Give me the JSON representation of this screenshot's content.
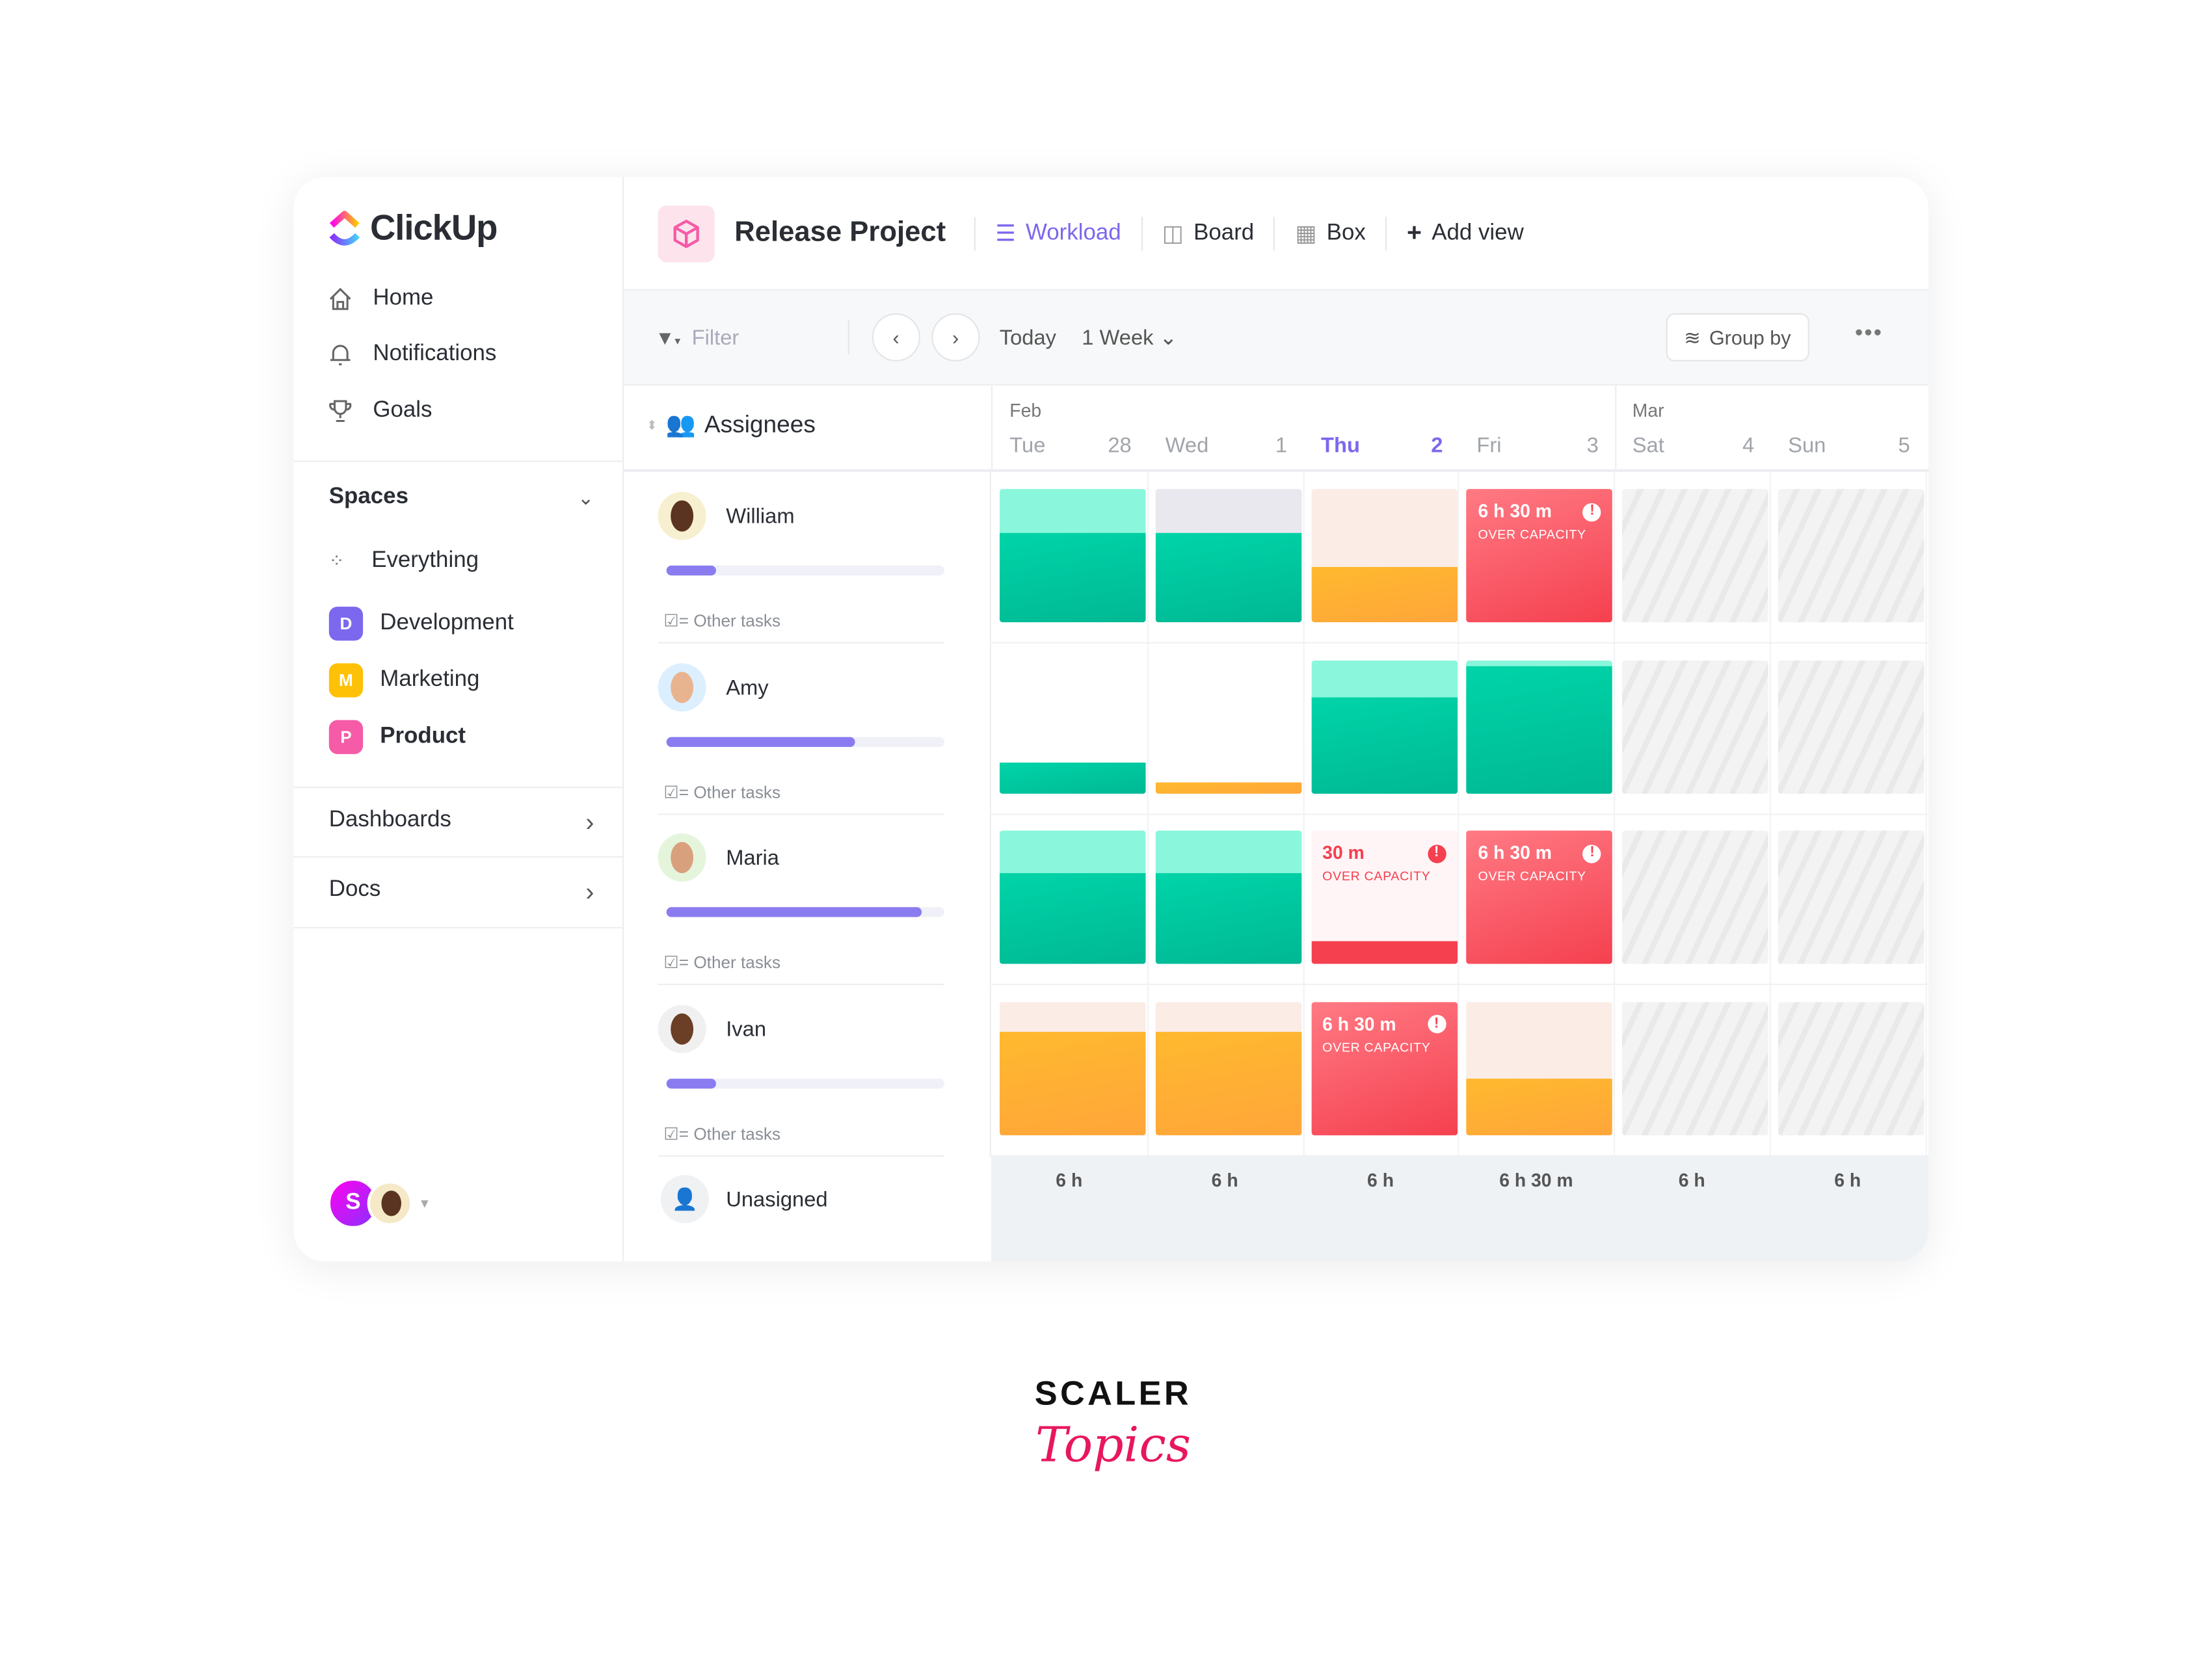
{
  "app": {
    "name": "ClickUp"
  },
  "sidebar": {
    "nav": [
      {
        "label": "Home",
        "icon": "home-icon"
      },
      {
        "label": "Notifications",
        "icon": "bell-icon"
      },
      {
        "label": "Goals",
        "icon": "trophy-icon"
      }
    ],
    "spaces_label": "Spaces",
    "everything_label": "Everything",
    "spaces": [
      {
        "letter": "D",
        "label": "Development",
        "color": "#7b68ee"
      },
      {
        "letter": "M",
        "label": "Marketing",
        "color": "#ffc107"
      },
      {
        "letter": "P",
        "label": "Product",
        "color": "#f55ba7",
        "bold": true
      }
    ],
    "dashboards_label": "Dashboards",
    "docs_label": "Docs",
    "user_initial": "S"
  },
  "header": {
    "project": "Release Project",
    "views": [
      {
        "label": "Workload",
        "active": true
      },
      {
        "label": "Board"
      },
      {
        "label": "Box"
      }
    ],
    "add_view": "Add view"
  },
  "toolbar": {
    "filter_placeholder": "Filter",
    "today": "Today",
    "range": "1 Week",
    "group_by": "Group by",
    "more": "•••"
  },
  "grid": {
    "assignees_label": "Assignees",
    "months": [
      {
        "label": "Feb",
        "col": 0
      },
      {
        "label": "Mar",
        "col": 4
      }
    ],
    "days": [
      {
        "name": "Tue",
        "num": "28"
      },
      {
        "name": "Wed",
        "num": "1"
      },
      {
        "name": "Thu",
        "num": "2",
        "today": true
      },
      {
        "name": "Fri",
        "num": "3"
      },
      {
        "name": "Sat",
        "num": "4"
      },
      {
        "name": "Sun",
        "num": "5"
      }
    ],
    "other_tasks": "Other tasks",
    "colors": {
      "green": "#00c9a0",
      "mint": "#8af7dc",
      "orange": "#ffb213",
      "peach": "#fbece6",
      "gray": "#e8e8ee",
      "red": "#f5404f"
    },
    "people": [
      {
        "name": "William",
        "progress": 0.18,
        "cells": [
          {
            "t": "bar",
            "fill": 0.67,
            "color": "green",
            "bg": "mint"
          },
          {
            "t": "bar",
            "fill": 0.67,
            "color": "green",
            "bg": "gray"
          },
          {
            "t": "bar",
            "fill": 0.41,
            "color": "orange",
            "bg": "peach"
          },
          {
            "t": "over",
            "time": "6 h 30 m",
            "label": "OVER CAPACITY"
          },
          {
            "t": "off"
          },
          {
            "t": "off"
          }
        ]
      },
      {
        "name": "Amy",
        "progress": 0.68,
        "cells": [
          {
            "t": "bar",
            "fill": 0.23,
            "color": "green"
          },
          {
            "t": "bar",
            "fill": 0.08,
            "color": "orange"
          },
          {
            "t": "bar",
            "fill": 0.72,
            "color": "green",
            "bg": "mint"
          },
          {
            "t": "bar",
            "fill": 0.95,
            "color": "green",
            "bg": "mint"
          },
          {
            "t": "off"
          },
          {
            "t": "off"
          }
        ]
      },
      {
        "name": "Maria",
        "progress": 0.92,
        "cells": [
          {
            "t": "bar",
            "fill": 0.68,
            "color": "green",
            "bg": "mint"
          },
          {
            "t": "bar",
            "fill": 0.68,
            "color": "green",
            "bg": "mint"
          },
          {
            "t": "over-small",
            "time": "30 m",
            "label": "OVER CAPACITY",
            "fill": 0.17
          },
          {
            "t": "over",
            "time": "6 h 30 m",
            "label": "OVER CAPACITY"
          },
          {
            "t": "off"
          },
          {
            "t": "off"
          }
        ]
      },
      {
        "name": "Ivan",
        "progress": 0.18,
        "cells": [
          {
            "t": "bar",
            "fill": 0.77,
            "color": "orange",
            "bg": "peach"
          },
          {
            "t": "bar",
            "fill": 0.77,
            "color": "orange",
            "bg": "peach"
          },
          {
            "t": "over",
            "time": "6 h 30 m",
            "label": "OVER CAPACITY"
          },
          {
            "t": "bar",
            "fill": 0.42,
            "color": "orange",
            "bg": "peach"
          },
          {
            "t": "off"
          },
          {
            "t": "off"
          }
        ]
      }
    ],
    "unassigned": "Unasigned",
    "totals": [
      "6 h",
      "6 h",
      "6 h",
      "6 h 30 m",
      "6 h",
      "6 h"
    ]
  },
  "watermark": {
    "line1": "SCALER",
    "line2": "Topics"
  }
}
